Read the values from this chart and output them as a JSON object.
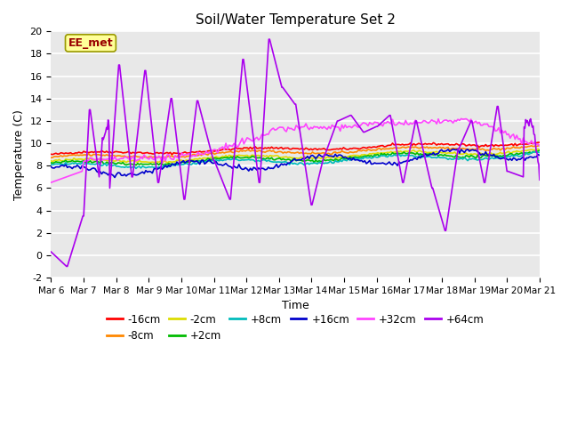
{
  "title": "Soil/Water Temperature Set 2",
  "xlabel": "Time",
  "ylabel": "Temperature (C)",
  "ylim": [
    -2,
    20
  ],
  "yticks": [
    -2,
    0,
    2,
    4,
    6,
    8,
    10,
    12,
    14,
    16,
    18,
    20
  ],
  "xtick_labels": [
    "Mar 6",
    "Mar 7",
    "Mar 8",
    "Mar 9",
    "Mar 10",
    "Mar 11",
    "Mar 12",
    "Mar 13",
    "Mar 14",
    "Mar 15",
    "Mar 16",
    "Mar 17",
    "Mar 18",
    "Mar 19",
    "Mar 20",
    "Mar 21"
  ],
  "n_days": 15,
  "fig_bg": "#ffffff",
  "plot_bg": "#e8e8e8",
  "annotation_text": "EE_met",
  "annotation_bg": "#ffff99",
  "annotation_fg": "#990000",
  "series": [
    {
      "label": "-16cm",
      "color": "#ff0000"
    },
    {
      "label": "-8cm",
      "color": "#ff8800"
    },
    {
      "label": "-2cm",
      "color": "#dddd00"
    },
    {
      "label": "+2cm",
      "color": "#00bb00"
    },
    {
      "label": "+8cm",
      "color": "#00bbbb"
    },
    {
      "label": "+16cm",
      "color": "#0000cc"
    },
    {
      "label": "+32cm",
      "color": "#ff44ff"
    },
    {
      "label": "+64cm",
      "color": "#aa00ee"
    }
  ]
}
